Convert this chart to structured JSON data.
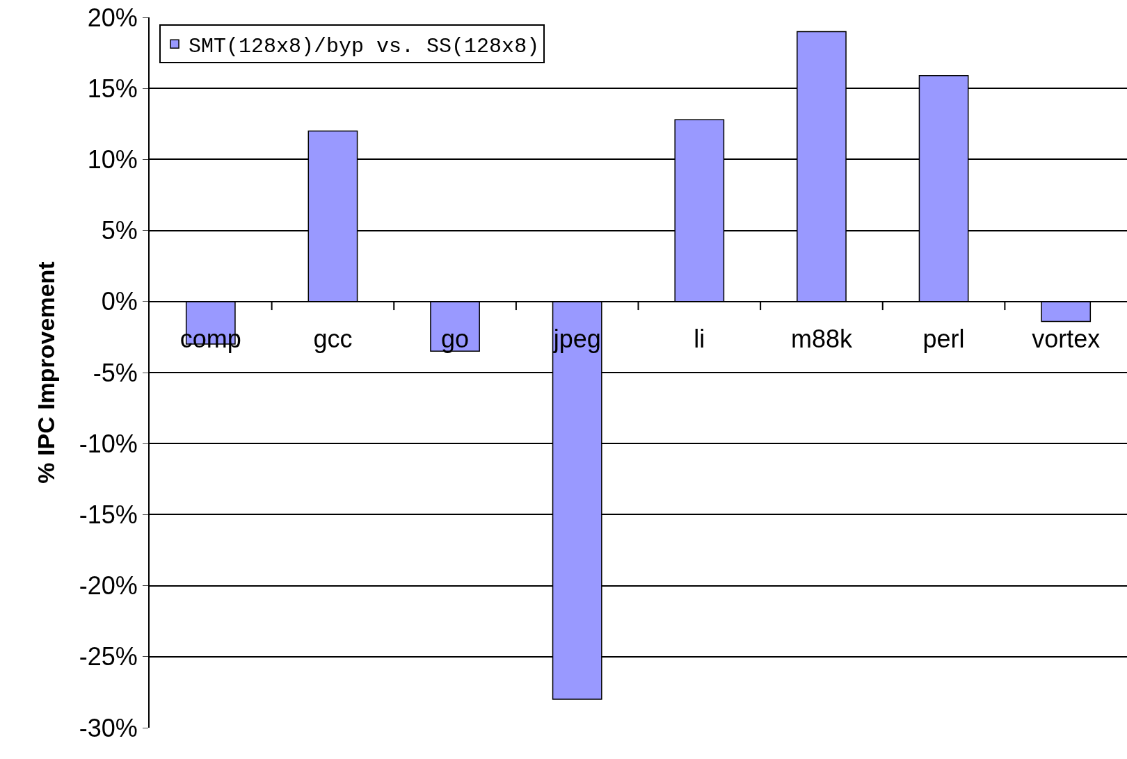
{
  "chart_data": {
    "type": "bar",
    "ylabel": "% IPC Improvement",
    "categories": [
      "comp",
      "gcc",
      "go",
      "jpeg",
      "li",
      "m88k",
      "perl",
      "vortex"
    ],
    "series": [
      {
        "name": "SMT(128x8)/byp vs. SS(128x8)",
        "color": "#9999ff",
        "values": [
          -3.0,
          12.0,
          -3.5,
          -28.0,
          12.8,
          19.0,
          15.9,
          -1.4
        ]
      }
    ],
    "ylim": [
      -30,
      20
    ],
    "yticks": [
      {
        "value": -30,
        "label": "-30%"
      },
      {
        "value": -25,
        "label": "-25%"
      },
      {
        "value": -20,
        "label": "-20%"
      },
      {
        "value": -15,
        "label": "-15%"
      },
      {
        "value": -10,
        "label": "-10%"
      },
      {
        "value": -5,
        "label": "-5%"
      },
      {
        "value": 0,
        "label": "0%"
      },
      {
        "value": 5,
        "label": "5%"
      },
      {
        "value": 10,
        "label": "10%"
      },
      {
        "value": 15,
        "label": "15%"
      },
      {
        "value": 20,
        "label": "20%"
      }
    ],
    "grid": "y",
    "legend": "top left"
  }
}
